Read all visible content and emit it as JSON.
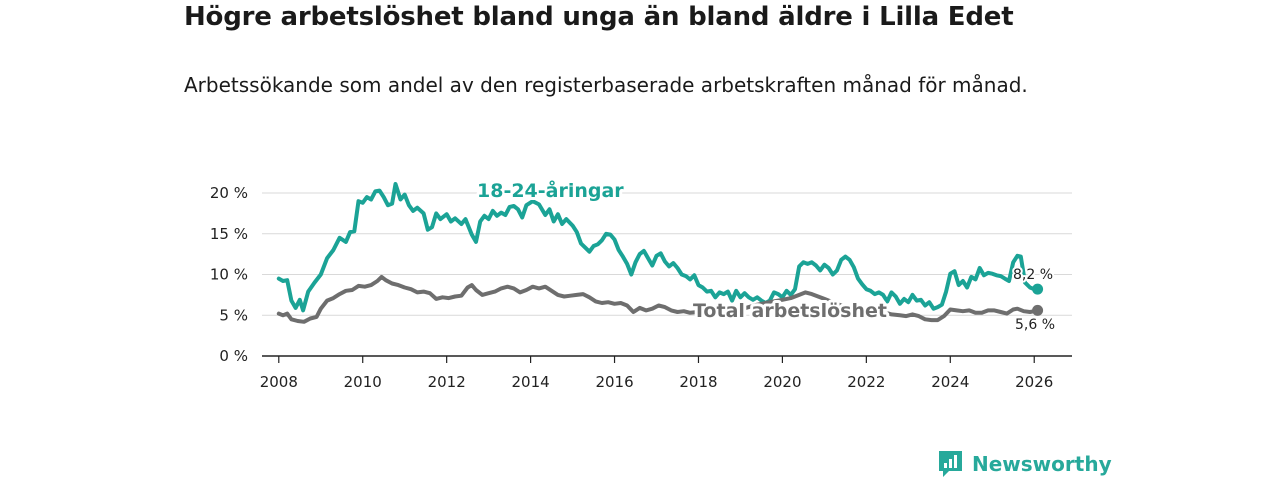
{
  "chart_data": {
    "type": "line",
    "title": "Högre arbetslöshet bland unga än bland äldre i Lilla Edet",
    "subtitle": "Arbetssökande som andel av den registerbaserade arbetskraften månad för månad.",
    "xlabel": "",
    "ylabel": "",
    "xlim": [
      2007.6,
      2026.9
    ],
    "ylim": [
      0,
      20
    ],
    "grid": true,
    "x_ticks": [
      {
        "value": 2008,
        "label": "2008"
      },
      {
        "value": 2010,
        "label": "2010"
      },
      {
        "value": 2012,
        "label": "2012"
      },
      {
        "value": 2014,
        "label": "2014"
      },
      {
        "value": 2016,
        "label": "2016"
      },
      {
        "value": 2018,
        "label": "2018"
      },
      {
        "value": 2020,
        "label": "2020"
      },
      {
        "value": 2022,
        "label": "2022"
      },
      {
        "value": 2024,
        "label": "2024"
      },
      {
        "value": 2026,
        "label": "2026"
      }
    ],
    "y_ticks": [
      {
        "value": 0,
        "label": "0 %"
      },
      {
        "value": 5,
        "label": "5 %"
      },
      {
        "value": 10,
        "label": "10 %"
      },
      {
        "value": 15,
        "label": "15 %"
      },
      {
        "value": 20,
        "label": "20 %"
      }
    ],
    "series": [
      {
        "name": "18-24-åringar",
        "color": "#1ba396",
        "end_label": "8,2 %",
        "points": [
          [
            2008.0,
            9.5
          ],
          [
            2008.1,
            9.2
          ],
          [
            2008.2,
            9.3
          ],
          [
            2008.3,
            6.8
          ],
          [
            2008.4,
            5.9
          ],
          [
            2008.5,
            6.9
          ],
          [
            2008.58,
            5.6
          ],
          [
            2008.7,
            7.9
          ],
          [
            2008.85,
            9.0
          ],
          [
            2009.0,
            10.0
          ],
          [
            2009.15,
            12.0
          ],
          [
            2009.3,
            13.0
          ],
          [
            2009.45,
            14.5
          ],
          [
            2009.6,
            14.0
          ],
          [
            2009.7,
            15.2
          ],
          [
            2009.8,
            15.3
          ],
          [
            2009.9,
            19.0
          ],
          [
            2010.0,
            18.8
          ],
          [
            2010.1,
            19.5
          ],
          [
            2010.2,
            19.2
          ],
          [
            2010.3,
            20.2
          ],
          [
            2010.4,
            20.3
          ],
          [
            2010.5,
            19.5
          ],
          [
            2010.6,
            18.5
          ],
          [
            2010.7,
            18.7
          ],
          [
            2010.78,
            21.1
          ],
          [
            2010.9,
            19.2
          ],
          [
            2011.0,
            19.8
          ],
          [
            2011.1,
            18.5
          ],
          [
            2011.2,
            17.8
          ],
          [
            2011.3,
            18.2
          ],
          [
            2011.45,
            17.5
          ],
          [
            2011.55,
            15.5
          ],
          [
            2011.65,
            15.8
          ],
          [
            2011.75,
            17.5
          ],
          [
            2011.85,
            16.8
          ],
          [
            2012.0,
            17.4
          ],
          [
            2012.1,
            16.5
          ],
          [
            2012.2,
            16.9
          ],
          [
            2012.35,
            16.2
          ],
          [
            2012.45,
            16.8
          ],
          [
            2012.6,
            14.9
          ],
          [
            2012.7,
            14.0
          ],
          [
            2012.8,
            16.5
          ],
          [
            2012.9,
            17.2
          ],
          [
            2013.0,
            16.8
          ],
          [
            2013.1,
            17.8
          ],
          [
            2013.2,
            17.2
          ],
          [
            2013.3,
            17.6
          ],
          [
            2013.4,
            17.3
          ],
          [
            2013.5,
            18.3
          ],
          [
            2013.6,
            18.4
          ],
          [
            2013.7,
            18.0
          ],
          [
            2013.8,
            17.0
          ],
          [
            2013.9,
            18.5
          ],
          [
            2014.05,
            19.0
          ],
          [
            2014.2,
            18.6
          ],
          [
            2014.35,
            17.3
          ],
          [
            2014.45,
            18.0
          ],
          [
            2014.55,
            16.5
          ],
          [
            2014.65,
            17.4
          ],
          [
            2014.75,
            16.2
          ],
          [
            2014.85,
            16.8
          ],
          [
            2015.0,
            16.0
          ],
          [
            2015.1,
            15.2
          ],
          [
            2015.2,
            13.8
          ],
          [
            2015.3,
            13.3
          ],
          [
            2015.4,
            12.8
          ],
          [
            2015.5,
            13.5
          ],
          [
            2015.6,
            13.7
          ],
          [
            2015.7,
            14.2
          ],
          [
            2015.8,
            15.0
          ],
          [
            2015.9,
            14.9
          ],
          [
            2016.0,
            14.3
          ],
          [
            2016.1,
            13.0
          ],
          [
            2016.2,
            12.2
          ],
          [
            2016.3,
            11.3
          ],
          [
            2016.4,
            10.0
          ],
          [
            2016.5,
            11.5
          ],
          [
            2016.6,
            12.5
          ],
          [
            2016.7,
            12.9
          ],
          [
            2016.8,
            12.0
          ],
          [
            2016.9,
            11.1
          ],
          [
            2017.0,
            12.3
          ],
          [
            2017.1,
            12.6
          ],
          [
            2017.2,
            11.6
          ],
          [
            2017.3,
            11.0
          ],
          [
            2017.4,
            11.4
          ],
          [
            2017.5,
            10.8
          ],
          [
            2017.6,
            10.0
          ],
          [
            2017.7,
            9.8
          ],
          [
            2017.8,
            9.4
          ],
          [
            2017.9,
            9.9
          ],
          [
            2018.0,
            8.7
          ],
          [
            2018.1,
            8.4
          ],
          [
            2018.2,
            7.9
          ],
          [
            2018.3,
            8.0
          ],
          [
            2018.4,
            7.2
          ],
          [
            2018.5,
            7.8
          ],
          [
            2018.6,
            7.6
          ],
          [
            2018.7,
            7.9
          ],
          [
            2018.8,
            6.8
          ],
          [
            2018.9,
            8.0
          ],
          [
            2019.0,
            7.2
          ],
          [
            2019.1,
            7.7
          ],
          [
            2019.2,
            7.2
          ],
          [
            2019.3,
            6.9
          ],
          [
            2019.4,
            7.2
          ],
          [
            2019.5,
            6.8
          ],
          [
            2019.6,
            6.5
          ],
          [
            2019.7,
            6.8
          ],
          [
            2019.8,
            7.8
          ],
          [
            2019.9,
            7.6
          ],
          [
            2020.0,
            7.2
          ],
          [
            2020.1,
            8.0
          ],
          [
            2020.2,
            7.5
          ],
          [
            2020.3,
            8.2
          ],
          [
            2020.4,
            11.0
          ],
          [
            2020.5,
            11.5
          ],
          [
            2020.6,
            11.3
          ],
          [
            2020.7,
            11.5
          ],
          [
            2020.8,
            11.1
          ],
          [
            2020.9,
            10.5
          ],
          [
            2021.0,
            11.2
          ],
          [
            2021.1,
            10.8
          ],
          [
            2021.2,
            10.0
          ],
          [
            2021.3,
            10.5
          ],
          [
            2021.4,
            11.8
          ],
          [
            2021.5,
            12.2
          ],
          [
            2021.6,
            11.8
          ],
          [
            2021.7,
            10.9
          ],
          [
            2021.8,
            9.5
          ],
          [
            2021.9,
            8.8
          ],
          [
            2022.0,
            8.2
          ],
          [
            2022.1,
            8.0
          ],
          [
            2022.2,
            7.6
          ],
          [
            2022.3,
            7.8
          ],
          [
            2022.4,
            7.5
          ],
          [
            2022.5,
            6.7
          ],
          [
            2022.6,
            7.8
          ],
          [
            2022.7,
            7.3
          ],
          [
            2022.8,
            6.4
          ],
          [
            2022.9,
            7.0
          ],
          [
            2023.0,
            6.6
          ],
          [
            2023.1,
            7.5
          ],
          [
            2023.2,
            6.8
          ],
          [
            2023.3,
            6.9
          ],
          [
            2023.4,
            6.2
          ],
          [
            2023.5,
            6.6
          ],
          [
            2023.6,
            5.8
          ],
          [
            2023.7,
            6.0
          ],
          [
            2023.8,
            6.3
          ],
          [
            2023.9,
            7.9
          ],
          [
            2024.0,
            10.1
          ],
          [
            2024.1,
            10.4
          ],
          [
            2024.2,
            8.7
          ],
          [
            2024.3,
            9.2
          ],
          [
            2024.4,
            8.4
          ],
          [
            2024.5,
            9.7
          ],
          [
            2024.6,
            9.4
          ],
          [
            2024.7,
            10.8
          ],
          [
            2024.8,
            9.9
          ],
          [
            2024.9,
            10.2
          ],
          [
            2025.0,
            10.1
          ],
          [
            2025.1,
            9.9
          ],
          [
            2025.2,
            9.8
          ],
          [
            2025.3,
            9.5
          ],
          [
            2025.4,
            9.2
          ],
          [
            2025.5,
            11.5
          ],
          [
            2025.6,
            12.3
          ],
          [
            2025.68,
            12.2
          ],
          [
            2025.78,
            9.0
          ],
          [
            2025.9,
            8.4
          ],
          [
            2026.0,
            8.2
          ],
          [
            2026.08,
            8.2
          ]
        ]
      },
      {
        "name": "Total arbetslöshet",
        "color": "#6e6e6e",
        "end_label": "5,6 %",
        "points": [
          [
            2008.0,
            5.2
          ],
          [
            2008.1,
            5.0
          ],
          [
            2008.2,
            5.2
          ],
          [
            2008.3,
            4.5
          ],
          [
            2008.45,
            4.3
          ],
          [
            2008.6,
            4.2
          ],
          [
            2008.75,
            4.6
          ],
          [
            2008.9,
            4.8
          ],
          [
            2009.0,
            5.8
          ],
          [
            2009.15,
            6.8
          ],
          [
            2009.3,
            7.1
          ],
          [
            2009.45,
            7.6
          ],
          [
            2009.6,
            8.0
          ],
          [
            2009.75,
            8.1
          ],
          [
            2009.9,
            8.6
          ],
          [
            2010.05,
            8.5
          ],
          [
            2010.2,
            8.7
          ],
          [
            2010.35,
            9.2
          ],
          [
            2010.45,
            9.7
          ],
          [
            2010.55,
            9.3
          ],
          [
            2010.7,
            8.9
          ],
          [
            2010.85,
            8.7
          ],
          [
            2011.0,
            8.4
          ],
          [
            2011.15,
            8.2
          ],
          [
            2011.3,
            7.8
          ],
          [
            2011.45,
            7.9
          ],
          [
            2011.6,
            7.7
          ],
          [
            2011.75,
            7.0
          ],
          [
            2011.9,
            7.2
          ],
          [
            2012.05,
            7.1
          ],
          [
            2012.2,
            7.3
          ],
          [
            2012.35,
            7.4
          ],
          [
            2012.5,
            8.4
          ],
          [
            2012.6,
            8.7
          ],
          [
            2012.7,
            8.1
          ],
          [
            2012.85,
            7.5
          ],
          [
            2013.0,
            7.7
          ],
          [
            2013.15,
            7.9
          ],
          [
            2013.3,
            8.3
          ],
          [
            2013.45,
            8.5
          ],
          [
            2013.6,
            8.3
          ],
          [
            2013.75,
            7.8
          ],
          [
            2013.9,
            8.1
          ],
          [
            2014.05,
            8.5
          ],
          [
            2014.2,
            8.3
          ],
          [
            2014.35,
            8.5
          ],
          [
            2014.5,
            8.0
          ],
          [
            2014.65,
            7.5
          ],
          [
            2014.8,
            7.3
          ],
          [
            2014.95,
            7.4
          ],
          [
            2015.1,
            7.5
          ],
          [
            2015.25,
            7.6
          ],
          [
            2015.4,
            7.2
          ],
          [
            2015.55,
            6.7
          ],
          [
            2015.7,
            6.5
          ],
          [
            2015.85,
            6.6
          ],
          [
            2016.0,
            6.4
          ],
          [
            2016.15,
            6.5
          ],
          [
            2016.3,
            6.2
          ],
          [
            2016.45,
            5.4
          ],
          [
            2016.6,
            5.9
          ],
          [
            2016.75,
            5.6
          ],
          [
            2016.9,
            5.8
          ],
          [
            2017.05,
            6.2
          ],
          [
            2017.2,
            6.0
          ],
          [
            2017.35,
            5.6
          ],
          [
            2017.5,
            5.4
          ],
          [
            2017.65,
            5.5
          ],
          [
            2017.8,
            5.3
          ],
          [
            2018.0,
            5.4
          ],
          [
            2018.2,
            5.3
          ],
          [
            2018.4,
            5.6
          ],
          [
            2018.6,
            5.5
          ],
          [
            2018.8,
            5.4
          ],
          [
            2019.0,
            5.7
          ],
          [
            2019.2,
            6.0
          ],
          [
            2019.4,
            6.3
          ],
          [
            2019.6,
            6.5
          ],
          [
            2019.8,
            6.7
          ],
          [
            2020.0,
            6.9
          ],
          [
            2020.2,
            7.1
          ],
          [
            2020.4,
            7.5
          ],
          [
            2020.55,
            7.8
          ],
          [
            2020.7,
            7.6
          ],
          [
            2020.85,
            7.3
          ],
          [
            2021.0,
            7.0
          ],
          [
            2021.2,
            6.6
          ],
          [
            2021.4,
            6.2
          ],
          [
            2021.6,
            5.9
          ],
          [
            2021.8,
            5.6
          ],
          [
            2022.0,
            5.4
          ],
          [
            2022.2,
            5.3
          ],
          [
            2022.4,
            5.4
          ],
          [
            2022.6,
            5.1
          ],
          [
            2022.8,
            5.0
          ],
          [
            2022.95,
            4.9
          ],
          [
            2023.1,
            5.1
          ],
          [
            2023.25,
            4.9
          ],
          [
            2023.4,
            4.5
          ],
          [
            2023.55,
            4.4
          ],
          [
            2023.7,
            4.4
          ],
          [
            2023.85,
            4.9
          ],
          [
            2024.0,
            5.7
          ],
          [
            2024.15,
            5.6
          ],
          [
            2024.3,
            5.5
          ],
          [
            2024.45,
            5.6
          ],
          [
            2024.6,
            5.3
          ],
          [
            2024.75,
            5.3
          ],
          [
            2024.9,
            5.6
          ],
          [
            2025.05,
            5.6
          ],
          [
            2025.2,
            5.4
          ],
          [
            2025.35,
            5.2
          ],
          [
            2025.5,
            5.7
          ],
          [
            2025.6,
            5.8
          ],
          [
            2025.75,
            5.5
          ],
          [
            2025.9,
            5.4
          ],
          [
            2026.0,
            5.5
          ],
          [
            2026.08,
            5.6
          ]
        ]
      }
    ]
  },
  "brand": {
    "name": "Newsworthy"
  }
}
